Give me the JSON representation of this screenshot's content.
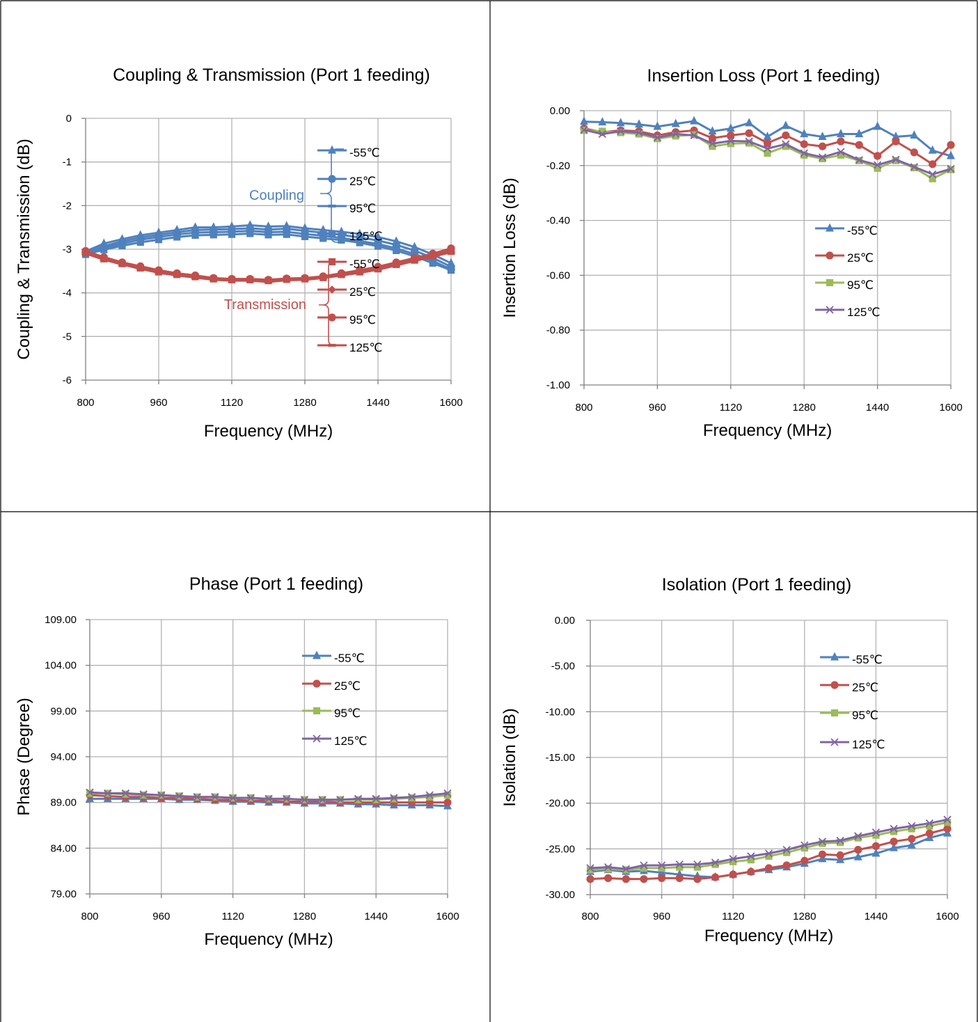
{
  "chart_data": [
    {
      "type": "line",
      "title": "Coupling & Transmission (Port 1 feeding)",
      "xlabel": "Frequency (MHz)",
      "ylabel": "Coupling & Transmission (dB)",
      "xlim": [
        800,
        1600
      ],
      "ylim": [
        -6,
        0
      ],
      "x_ticks": [
        "800",
        "960",
        "1120",
        "1280",
        "1440",
        "1600"
      ],
      "y_ticks": [
        "0",
        "-1",
        "-2",
        "-3",
        "-4",
        "-5",
        "-6"
      ],
      "x": [
        800,
        840,
        880,
        920,
        960,
        1000,
        1040,
        1080,
        1120,
        1160,
        1200,
        1240,
        1280,
        1320,
        1360,
        1400,
        1440,
        1480,
        1520,
        1560,
        1600
      ],
      "series": [
        {
          "name": "-55℃",
          "group": "coupling",
          "color": "#4f81bd",
          "marker": "triangle",
          "values": [
            -3.05,
            -2.87,
            -2.77,
            -2.68,
            -2.62,
            -2.56,
            -2.5,
            -2.5,
            -2.48,
            -2.45,
            -2.48,
            -2.47,
            -2.52,
            -2.56,
            -2.6,
            -2.65,
            -2.72,
            -2.82,
            -2.95,
            -3.12,
            -3.32
          ]
        },
        {
          "name": "25℃",
          "group": "coupling",
          "color": "#4f81bd",
          "marker": "circle",
          "values": [
            -3.05,
            -2.93,
            -2.82,
            -2.73,
            -2.67,
            -2.61,
            -2.56,
            -2.55,
            -2.54,
            -2.52,
            -2.55,
            -2.53,
            -2.58,
            -2.62,
            -2.67,
            -2.73,
            -2.8,
            -2.9,
            -3.03,
            -3.2,
            -3.4
          ]
        },
        {
          "name": "95℃",
          "group": "coupling",
          "color": "#4f81bd",
          "marker": "dash",
          "values": [
            -3.08,
            -2.97,
            -2.87,
            -2.78,
            -2.72,
            -2.66,
            -2.62,
            -2.61,
            -2.6,
            -2.58,
            -2.61,
            -2.6,
            -2.65,
            -2.69,
            -2.74,
            -2.81,
            -2.88,
            -2.98,
            -3.11,
            -3.27,
            -3.46
          ]
        },
        {
          "name": "125℃",
          "group": "coupling",
          "color": "#4f81bd",
          "marker": "square",
          "values": [
            -3.12,
            -3.01,
            -2.92,
            -2.84,
            -2.78,
            -2.72,
            -2.68,
            -2.67,
            -2.66,
            -2.64,
            -2.67,
            -2.66,
            -2.71,
            -2.75,
            -2.79,
            -2.85,
            -2.93,
            -3.03,
            -3.16,
            -3.32,
            -3.48
          ]
        },
        {
          "name": "-55℃",
          "group": "transmission",
          "color": "#c0504d",
          "marker": "square",
          "values": [
            -3.08,
            -3.22,
            -3.33,
            -3.43,
            -3.52,
            -3.58,
            -3.63,
            -3.68,
            -3.7,
            -3.7,
            -3.72,
            -3.69,
            -3.68,
            -3.65,
            -3.58,
            -3.52,
            -3.45,
            -3.35,
            -3.25,
            -3.15,
            -3.05
          ]
        },
        {
          "name": "25℃",
          "group": "transmission",
          "color": "#c0504d",
          "marker": "diamond",
          "values": [
            -3.06,
            -3.2,
            -3.31,
            -3.41,
            -3.5,
            -3.56,
            -3.62,
            -3.67,
            -3.69,
            -3.69,
            -3.71,
            -3.68,
            -3.67,
            -3.63,
            -3.56,
            -3.5,
            -3.42,
            -3.32,
            -3.22,
            -3.12,
            -3.0
          ]
        },
        {
          "name": "95℃",
          "group": "transmission",
          "color": "#c0504d",
          "marker": "circle",
          "values": [
            -3.04,
            -3.18,
            -3.3,
            -3.39,
            -3.48,
            -3.55,
            -3.6,
            -3.66,
            -3.68,
            -3.68,
            -3.7,
            -3.67,
            -3.66,
            -3.62,
            -3.55,
            -3.48,
            -3.4,
            -3.3,
            -3.2,
            -3.1,
            -2.98
          ]
        },
        {
          "name": "125℃",
          "group": "transmission",
          "color": "#c0504d",
          "marker": "dash",
          "values": [
            -3.1,
            -3.24,
            -3.35,
            -3.45,
            -3.54,
            -3.6,
            -3.65,
            -3.7,
            -3.72,
            -3.72,
            -3.75,
            -3.71,
            -3.7,
            -3.66,
            -3.6,
            -3.54,
            -3.47,
            -3.37,
            -3.27,
            -3.17,
            -3.07
          ]
        }
      ],
      "annotations": [
        {
          "text": "Coupling",
          "color": "#4f81bd"
        },
        {
          "text": "Transmission",
          "color": "#c0504d"
        }
      ],
      "grid": true,
      "legend_position": "right"
    },
    {
      "type": "line",
      "title": "Insertion Loss (Port 1 feeding)",
      "xlabel": "Frequency (MHz)",
      "ylabel": "Insertion Loss (dB)",
      "xlim": [
        800,
        1600
      ],
      "ylim": [
        -1,
        0
      ],
      "x_ticks": [
        "800",
        "960",
        "1120",
        "1280",
        "1440",
        "1600"
      ],
      "y_ticks": [
        "0.00",
        "-0.20",
        "-0.40",
        "-0.60",
        "-0.80",
        "-1.00"
      ],
      "x": [
        800,
        840,
        880,
        920,
        960,
        1000,
        1040,
        1080,
        1120,
        1160,
        1200,
        1240,
        1280,
        1320,
        1360,
        1400,
        1440,
        1480,
        1520,
        1560,
        1600
      ],
      "series": [
        {
          "name": "-55℃",
          "color": "#4f81bd",
          "marker": "triangle",
          "values": [
            -0.04,
            -0.042,
            -0.045,
            -0.05,
            -0.058,
            -0.048,
            -0.038,
            -0.075,
            -0.065,
            -0.045,
            -0.095,
            -0.055,
            -0.085,
            -0.095,
            -0.085,
            -0.085,
            -0.058,
            -0.095,
            -0.09,
            -0.145,
            -0.165
          ]
        },
        {
          "name": "25℃",
          "color": "#c0504d",
          "marker": "circle",
          "values": [
            -0.065,
            -0.078,
            -0.072,
            -0.075,
            -0.09,
            -0.078,
            -0.072,
            -0.1,
            -0.09,
            -0.082,
            -0.118,
            -0.09,
            -0.122,
            -0.13,
            -0.112,
            -0.125,
            -0.165,
            -0.112,
            -0.152,
            -0.195,
            -0.125
          ]
        },
        {
          "name": "95℃",
          "color": "#9bbb59",
          "marker": "square",
          "values": [
            -0.072,
            -0.075,
            -0.08,
            -0.085,
            -0.102,
            -0.092,
            -0.088,
            -0.13,
            -0.12,
            -0.118,
            -0.155,
            -0.13,
            -0.162,
            -0.175,
            -0.162,
            -0.182,
            -0.21,
            -0.182,
            -0.208,
            -0.248,
            -0.215
          ]
        },
        {
          "name": "125℃",
          "color": "#8064a2",
          "marker": "x",
          "values": [
            -0.07,
            -0.085,
            -0.075,
            -0.08,
            -0.098,
            -0.085,
            -0.09,
            -0.12,
            -0.11,
            -0.112,
            -0.138,
            -0.122,
            -0.155,
            -0.17,
            -0.15,
            -0.18,
            -0.198,
            -0.178,
            -0.205,
            -0.232,
            -0.212
          ]
        }
      ],
      "grid": true,
      "legend_position": "right"
    },
    {
      "type": "line",
      "title": "Phase (Port 1 feeding)",
      "xlabel": "Frequency (MHz)",
      "ylabel": "Phase (Degree)",
      "xlim": [
        800,
        1600
      ],
      "ylim": [
        79,
        109
      ],
      "x_ticks": [
        "800",
        "960",
        "1120",
        "1280",
        "1440",
        "1600"
      ],
      "y_ticks": [
        "109.00",
        "104.00",
        "99.00",
        "94.00",
        "89.00",
        "84.00",
        "79.00"
      ],
      "x": [
        800,
        840,
        880,
        920,
        960,
        1000,
        1040,
        1080,
        1120,
        1160,
        1200,
        1240,
        1280,
        1320,
        1360,
        1400,
        1440,
        1480,
        1520,
        1560,
        1600
      ],
      "series": [
        {
          "name": "-55℃",
          "color": "#4f81bd",
          "marker": "triangle",
          "values": [
            89.4,
            89.4,
            89.4,
            89.4,
            89.4,
            89.3,
            89.3,
            89.2,
            89.1,
            89.1,
            89.0,
            89.0,
            88.9,
            88.9,
            88.9,
            88.8,
            88.8,
            88.7,
            88.7,
            88.7,
            88.6
          ]
        },
        {
          "name": "25℃",
          "color": "#c0504d",
          "marker": "circle",
          "values": [
            89.8,
            89.7,
            89.6,
            89.6,
            89.5,
            89.5,
            89.4,
            89.3,
            89.3,
            89.2,
            89.2,
            89.1,
            89.1,
            89.1,
            89.0,
            89.0,
            89.0,
            89.0,
            89.0,
            89.0,
            89.0
          ]
        },
        {
          "name": "95℃",
          "color": "#9bbb59",
          "marker": "square",
          "values": [
            90.0,
            90.0,
            89.9,
            89.8,
            89.8,
            89.7,
            89.6,
            89.6,
            89.5,
            89.5,
            89.4,
            89.4,
            89.3,
            89.3,
            89.3,
            89.3,
            89.3,
            89.4,
            89.5,
            89.6,
            89.8
          ]
        },
        {
          "name": "125℃",
          "color": "#8064a2",
          "marker": "x",
          "values": [
            90.1,
            90.0,
            90.0,
            89.9,
            89.8,
            89.7,
            89.6,
            89.6,
            89.5,
            89.5,
            89.4,
            89.4,
            89.3,
            89.3,
            89.3,
            89.4,
            89.4,
            89.5,
            89.6,
            89.8,
            90.0
          ]
        }
      ],
      "grid": true,
      "legend_position": "right"
    },
    {
      "type": "line",
      "title": "Isolation (Port 1 feeding)",
      "xlabel": "Frequency (MHz)",
      "ylabel": "Isolation (dB)",
      "xlim": [
        800,
        1600
      ],
      "ylim": [
        -30,
        0
      ],
      "x_ticks": [
        "800",
        "960",
        "1120",
        "1280",
        "1440",
        "1600"
      ],
      "y_ticks": [
        "0.00",
        "-5.00",
        "-10.00",
        "-15.00",
        "-20.00",
        "-25.00",
        "-30.00"
      ],
      "x": [
        800,
        840,
        880,
        920,
        960,
        1000,
        1040,
        1080,
        1120,
        1160,
        1200,
        1240,
        1280,
        1320,
        1360,
        1400,
        1440,
        1480,
        1520,
        1560,
        1600
      ],
      "series": [
        {
          "name": "-55℃",
          "color": "#4f81bd",
          "marker": "triangle",
          "values": [
            -27.5,
            -27.3,
            -27.5,
            -27.4,
            -27.6,
            -27.8,
            -28.0,
            -28.1,
            -27.8,
            -27.5,
            -27.3,
            -27.0,
            -26.6,
            -26.1,
            -26.2,
            -25.9,
            -25.5,
            -24.9,
            -24.6,
            -23.8,
            -23.3
          ]
        },
        {
          "name": "25℃",
          "color": "#c0504d",
          "marker": "circle",
          "values": [
            -28.3,
            -28.2,
            -28.3,
            -28.3,
            -28.2,
            -28.2,
            -28.3,
            -28.1,
            -27.8,
            -27.5,
            -27.1,
            -26.8,
            -26.3,
            -25.6,
            -25.7,
            -25.1,
            -24.7,
            -24.2,
            -23.9,
            -23.3,
            -22.8
          ]
        },
        {
          "name": "95℃",
          "color": "#9bbb59",
          "marker": "square",
          "values": [
            -27.3,
            -27.2,
            -27.3,
            -27.1,
            -27.1,
            -27.0,
            -27.0,
            -26.7,
            -26.4,
            -26.2,
            -25.8,
            -25.4,
            -24.9,
            -24.4,
            -24.3,
            -23.8,
            -23.5,
            -23.1,
            -22.8,
            -22.5,
            -22.1
          ]
        },
        {
          "name": "125℃",
          "color": "#8064a2",
          "marker": "x",
          "values": [
            -27.1,
            -27.0,
            -27.2,
            -26.8,
            -26.8,
            -26.7,
            -26.7,
            -26.5,
            -26.1,
            -25.8,
            -25.5,
            -25.1,
            -24.6,
            -24.2,
            -24.1,
            -23.6,
            -23.2,
            -22.8,
            -22.5,
            -22.2,
            -21.8
          ]
        }
      ],
      "grid": true,
      "legend_position": "right"
    }
  ]
}
